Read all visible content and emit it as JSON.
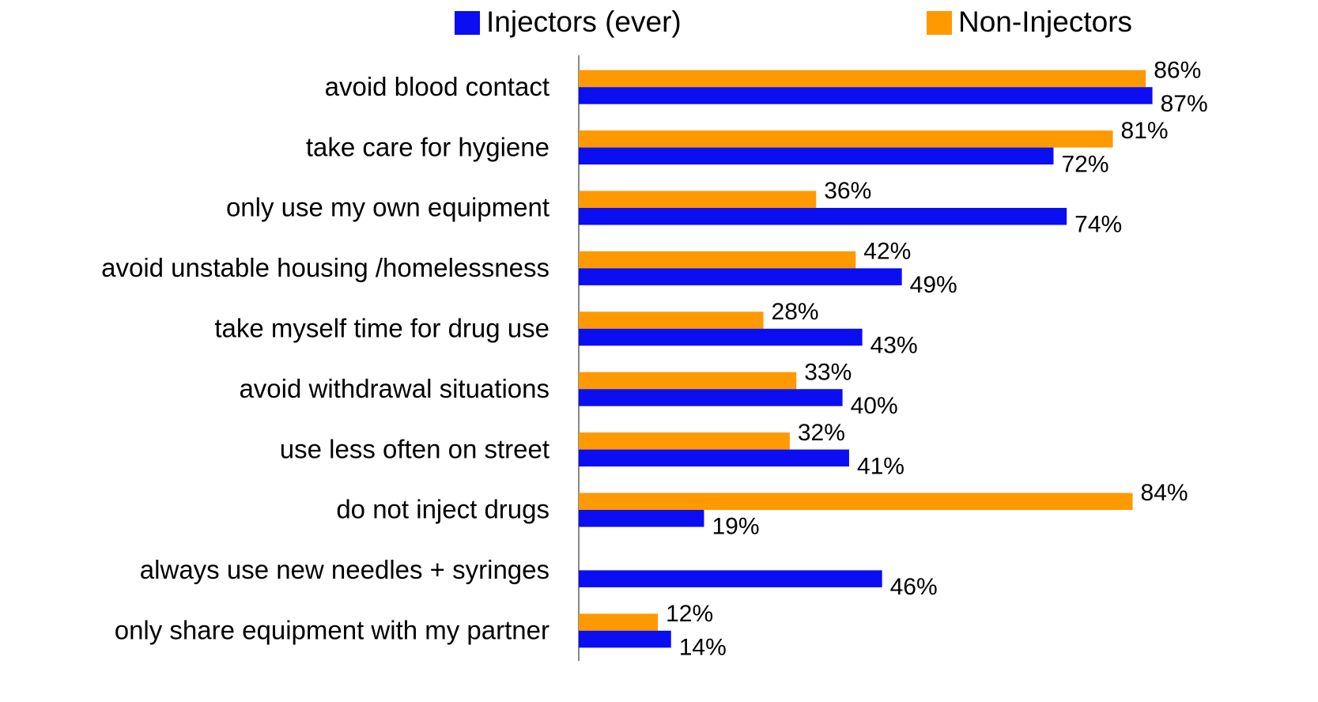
{
  "chart_data": {
    "type": "bar",
    "orientation": "horizontal",
    "categories": [
      "avoid blood contact",
      "take care for hygiene",
      "only use my own equipment",
      "avoid unstable housing /homelessness",
      "take myself time for drug use",
      "avoid withdrawal situations",
      "use less often on street",
      "do not inject drugs",
      "always use new needles + syringes",
      "only share equipment with my partner"
    ],
    "series": [
      {
        "name": "Injectors (ever)",
        "color": "#0a0ef0",
        "values": [
          87,
          72,
          74,
          49,
          43,
          40,
          41,
          19,
          46,
          14
        ],
        "value_labels": [
          "87%",
          "72%",
          "74%",
          "49%",
          "43%",
          "40%",
          "41%",
          "19%",
          "46%",
          "14%"
        ]
      },
      {
        "name": "Non-Injectors",
        "color": "#ff9900",
        "values": [
          86,
          81,
          36,
          42,
          28,
          33,
          32,
          84,
          null,
          12
        ],
        "value_labels": [
          "86%",
          "81%",
          "36%",
          "42%",
          "28%",
          "33%",
          "32%",
          "84%",
          null,
          "12%"
        ]
      }
    ],
    "xlim": [
      0,
      100
    ],
    "legend": "top"
  }
}
